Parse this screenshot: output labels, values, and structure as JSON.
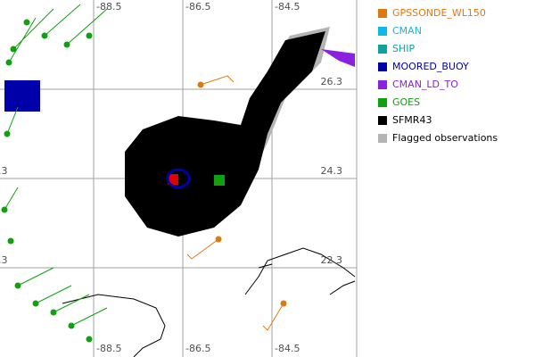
{
  "grid": {
    "longitudes": [
      -88.5,
      -86.5,
      -84.5
    ],
    "latitudes": [
      26.3,
      24.3,
      22.3
    ]
  },
  "legend": [
    {
      "label": "GPSSONDE_WL150",
      "color": "#e07810",
      "label_color": "#e07810"
    },
    {
      "label": "CMAN",
      "color": "#10b8e8",
      "label_color": "#10b8e8"
    },
    {
      "label": "SHIP",
      "color": "#10a0a0",
      "label_color": "#10a0a0"
    },
    {
      "label": "MOORED_BUOY",
      "color": "#0000a8",
      "label_color": "#0000a8"
    },
    {
      "label": "CMAN_LD_TO",
      "color": "#8a20e0",
      "label_color": "#8a20e0"
    },
    {
      "label": "GOES",
      "color": "#10a010",
      "label_color": "#10a010"
    },
    {
      "label": "SFMR43",
      "color": "#000000",
      "label_color": "#000000"
    },
    {
      "label": "Flagged observations",
      "color": "#b4b4b4",
      "label_color": "#000000"
    }
  ]
}
